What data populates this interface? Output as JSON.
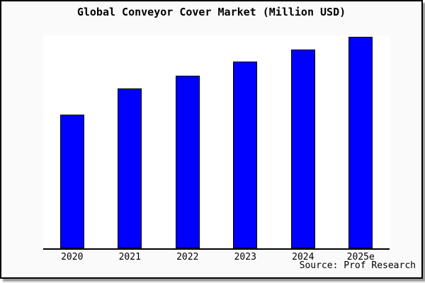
{
  "title": "Global Conveyor Cover Market (Million USD)",
  "source_note": "Source: Prof Research",
  "colors": {
    "bar_fill": "#0000ff",
    "bar_border": "#000000",
    "figure_bg": "#fafafa",
    "plot_bg": "#ffffff",
    "frame_border": "#000000",
    "text": "#000000",
    "shadow": "#9c9c9c",
    "page_bg": "#ffffff"
  },
  "chart_data": {
    "type": "bar",
    "title": "Global Conveyor Cover Market (Million USD)",
    "categories": [
      "2020",
      "2021",
      "2022",
      "2023",
      "2024",
      "2025e"
    ],
    "values": [
      63,
      75.5,
      81.5,
      88,
      94,
      100
    ],
    "value_scale": "relative index estimated from bar heights; no y-axis ticks or value labels are shown, tallest bar (2025e) = 100",
    "xlabel": "",
    "ylabel": "",
    "ylim": [
      0,
      100.5
    ],
    "grid": false,
    "legend": false,
    "bar_color": "#0000ff",
    "annotations": [
      "Source: Prof Research"
    ]
  }
}
